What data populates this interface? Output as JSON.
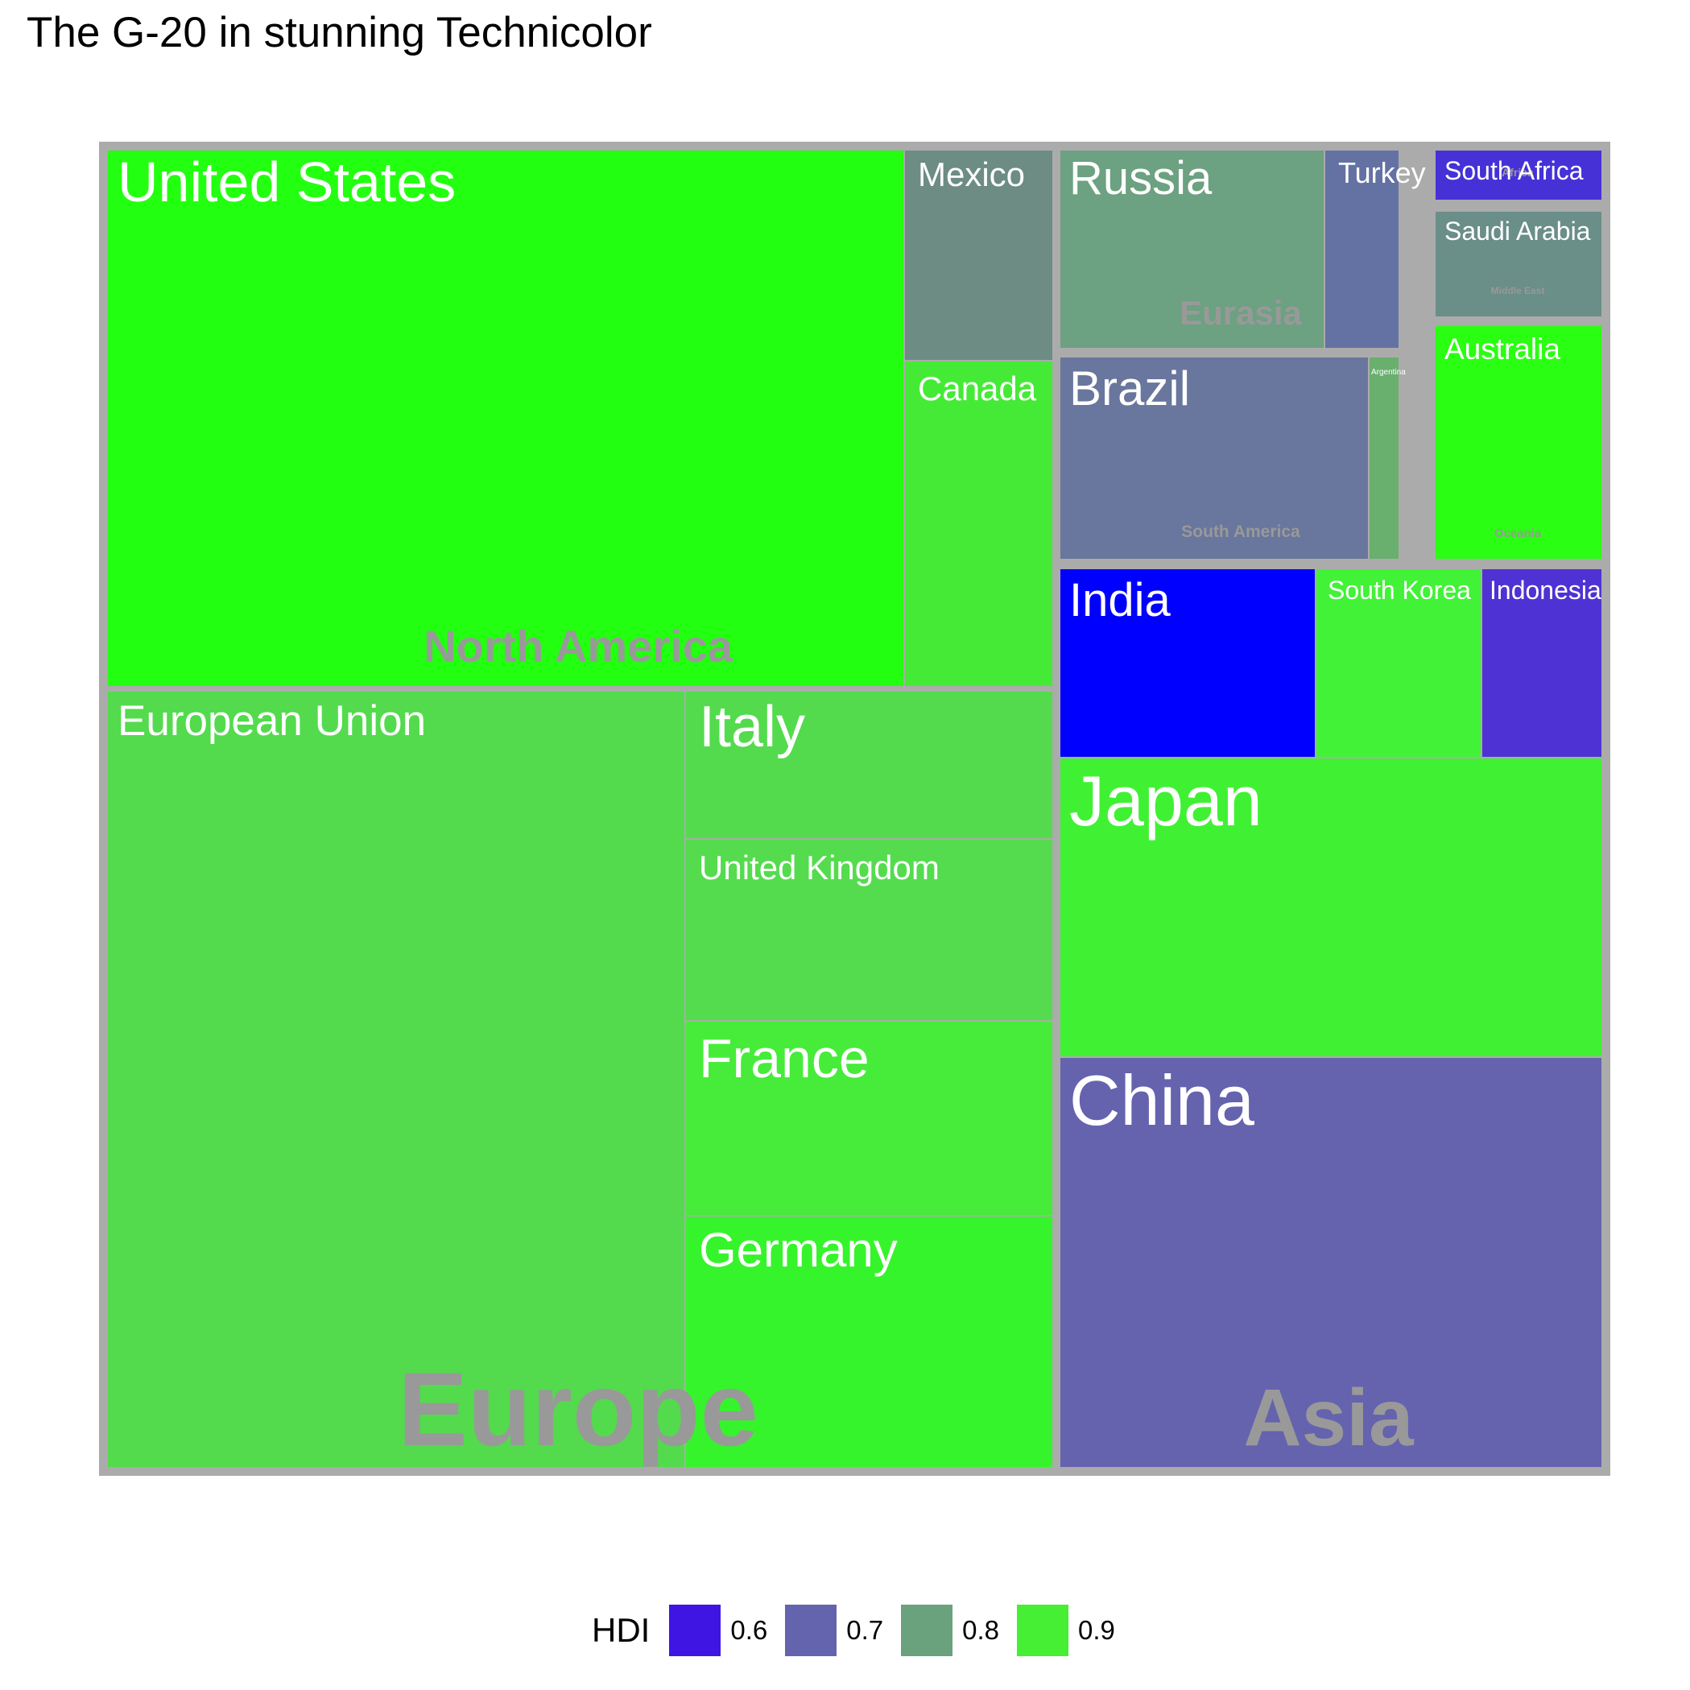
{
  "title": "The G-20 in stunning Technicolor",
  "legend": {
    "title": "HDI",
    "items": [
      {
        "label": "0.6",
        "color": "#3F15E4"
      },
      {
        "label": "0.7",
        "color": "#6464AE"
      },
      {
        "label": "0.8",
        "color": "#69A27C"
      },
      {
        "label": "0.9",
        "color": "#46EE34"
      }
    ]
  },
  "chart_data": {
    "type": "treemap",
    "color_variable": "HDI",
    "groups": [
      {
        "region": "North America",
        "countries": [
          {
            "name": "United States",
            "hdi": 0.95,
            "color": "#23FF10"
          },
          {
            "name": "Mexico",
            "hdi": 0.77,
            "color": "#6C8C84"
          },
          {
            "name": "Canada",
            "hdi": 0.91,
            "color": "#45EA37"
          }
        ]
      },
      {
        "region": "Europe",
        "countries": [
          {
            "name": "European Union",
            "hdi": 0.87,
            "color": "#53DB4D"
          },
          {
            "name": "Italy",
            "hdi": 0.87,
            "color": "#53DB4D"
          },
          {
            "name": "United Kingdom",
            "hdi": 0.86,
            "color": "#54DC4E"
          },
          {
            "name": "France",
            "hdi": 0.89,
            "color": "#46EC39"
          },
          {
            "name": "Germany",
            "hdi": 0.91,
            "color": "#36F42B"
          }
        ]
      },
      {
        "region": "Eurasia",
        "countries": [
          {
            "name": "Russia",
            "hdi": 0.76,
            "color": "#6CA181"
          },
          {
            "name": "Turkey",
            "hdi": 0.7,
            "color": "#6471A3"
          }
        ]
      },
      {
        "region": "South America",
        "countries": [
          {
            "name": "Brazil",
            "hdi": 0.72,
            "color": "#69769D"
          },
          {
            "name": "Argentina",
            "hdi": 0.8,
            "color": "#69AF6E"
          }
        ]
      },
      {
        "region": "Africa",
        "countries": [
          {
            "name": "South Africa",
            "hdi": 0.62,
            "color": "#4631D6"
          }
        ]
      },
      {
        "region": "Middle East",
        "countries": [
          {
            "name": "Saudi Arabia",
            "hdi": 0.77,
            "color": "#6A8E88"
          }
        ]
      },
      {
        "region": "Oceania",
        "countries": [
          {
            "name": "Australia",
            "hdi": 0.93,
            "color": "#2AFE12"
          }
        ]
      },
      {
        "region": "Asia",
        "countries": [
          {
            "name": "India",
            "hdi": 0.55,
            "color": "#0000FF"
          },
          {
            "name": "South Korea",
            "hdi": 0.9,
            "color": "#41F237"
          },
          {
            "name": "Indonesia",
            "hdi": 0.62,
            "color": "#4F32D3"
          },
          {
            "name": "Japan",
            "hdi": 0.9,
            "color": "#40F133"
          },
          {
            "name": "China",
            "hdi": 0.69,
            "color": "#6563AE"
          }
        ]
      }
    ]
  }
}
